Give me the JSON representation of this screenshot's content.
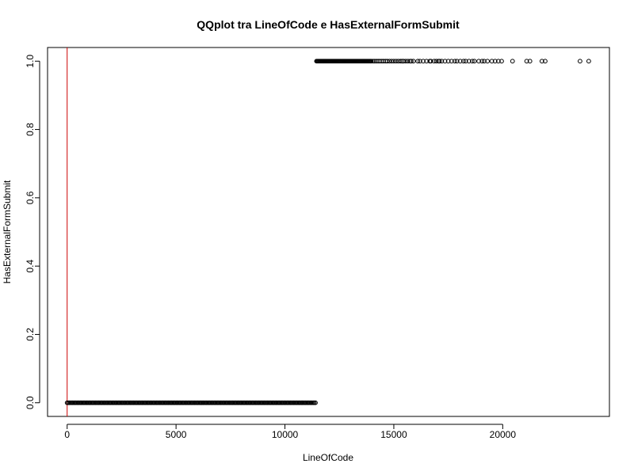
{
  "chart_data": {
    "type": "scatter",
    "title": "QQplot tra LineOfCode e HasExternalFormSubmit",
    "xlabel": "LineOfCode",
    "ylabel": "HasExternalFormSubmit",
    "xlim": [
      -900,
      24900
    ],
    "ylim": [
      -0.04,
      1.04
    ],
    "x_ticks": [
      0,
      5000,
      10000,
      15000,
      20000
    ],
    "x_tick_labels": [
      "0",
      "5000",
      "10000",
      "15000",
      "20000"
    ],
    "y_ticks": [
      0,
      0.2,
      0.4,
      0.6,
      0.8,
      1.0
    ],
    "y_tick_labels": [
      "0.0",
      "0.2",
      "0.4",
      "0.6",
      "0.8",
      "1.0"
    ],
    "grid": false,
    "legend": "none",
    "vline": {
      "x": 0,
      "color": "#cc0000"
    },
    "series": [
      {
        "marker": "open-circle",
        "color": "#000000",
        "zero_run": {
          "y": 0,
          "x_from": 0,
          "x_to": 11400,
          "step": 50
        },
        "one_run": {
          "y": 1,
          "x_from": 11450,
          "x_to": 14000,
          "step": 35
        },
        "one_points_x": [
          14050,
          14120,
          14200,
          14280,
          14360,
          14450,
          14530,
          14620,
          14700,
          14800,
          14900,
          15000,
          15100,
          15200,
          15300,
          15380,
          15450,
          15550,
          15650,
          15750,
          15800,
          15900,
          16100,
          16200,
          16350,
          16500,
          16650,
          16700,
          16850,
          16950,
          17050,
          17100,
          17200,
          17350,
          17500,
          17650,
          17800,
          17900,
          18050,
          18200,
          18300,
          18450,
          18600,
          18700,
          18900,
          19050,
          19150,
          19300,
          19500,
          19650,
          19800,
          19950,
          20450,
          21100,
          21250,
          21800,
          21950,
          23550,
          23950
        ]
      }
    ]
  }
}
